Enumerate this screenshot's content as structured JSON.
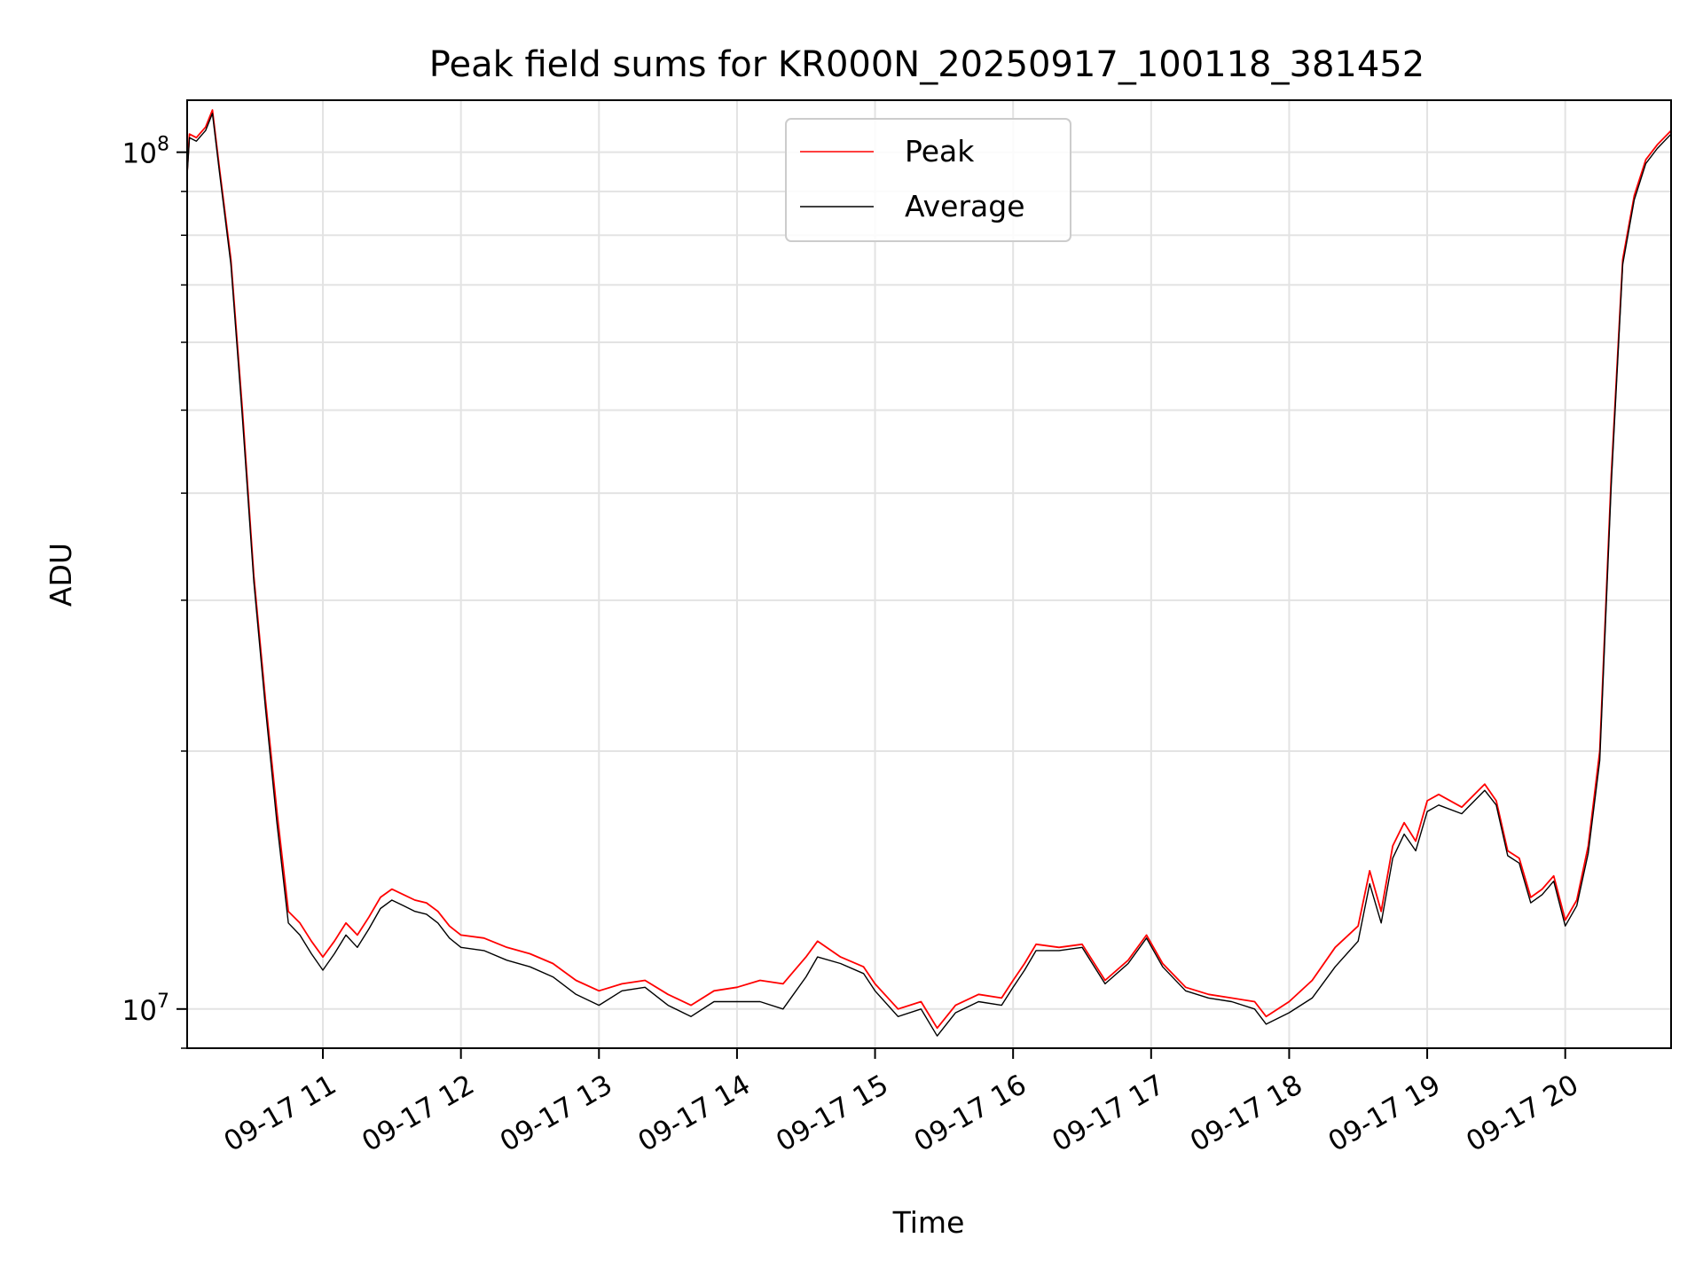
{
  "chart_data": {
    "type": "line",
    "title": "Peak field sums for KR000N_20250917_100118_381452",
    "xlabel": "Time",
    "ylabel": "ADU",
    "yscale": "log",
    "ylim": [
      9000000,
      115000000
    ],
    "xlim": [
      "2025-09-17 10:01",
      "2025-09-17 20:46"
    ],
    "grid": true,
    "legend": "top-center",
    "x_ticks": [
      {
        "label": "09-17 11",
        "time": "2025-09-17 11:00"
      },
      {
        "label": "09-17 12",
        "time": "2025-09-17 12:00"
      },
      {
        "label": "09-17 13",
        "time": "2025-09-17 13:00"
      },
      {
        "label": "09-17 14",
        "time": "2025-09-17 14:00"
      },
      {
        "label": "09-17 15",
        "time": "2025-09-17 15:00"
      },
      {
        "label": "09-17 16",
        "time": "2025-09-17 16:00"
      },
      {
        "label": "09-17 17",
        "time": "2025-09-17 17:00"
      },
      {
        "label": "09-17 18",
        "time": "2025-09-17 18:00"
      },
      {
        "label": "09-17 19",
        "time": "2025-09-17 19:00"
      },
      {
        "label": "09-17 20",
        "time": "2025-09-17 20:00"
      }
    ],
    "y_ticks": [
      {
        "base": "10",
        "exp": "7",
        "value": 10000000
      },
      {
        "base": "10",
        "exp": "8",
        "value": 100000000
      }
    ],
    "series": [
      {
        "name": "Peak",
        "color": "#ff0000",
        "points": [
          [
            "2025-09-17 10:01",
            95000000
          ],
          [
            "2025-09-17 10:02",
            105000000
          ],
          [
            "2025-09-17 10:05",
            104000000
          ],
          [
            "2025-09-17 10:09",
            107000000
          ],
          [
            "2025-09-17 10:12",
            112000000
          ],
          [
            "2025-09-17 10:15",
            96000000
          ],
          [
            "2025-09-17 10:20",
            75000000
          ],
          [
            "2025-09-17 10:25",
            50000000
          ],
          [
            "2025-09-17 10:30",
            32000000
          ],
          [
            "2025-09-17 10:35",
            23000000
          ],
          [
            "2025-09-17 10:40",
            17000000
          ],
          [
            "2025-09-17 10:45",
            13000000
          ],
          [
            "2025-09-17 10:50",
            12600000
          ],
          [
            "2025-09-17 10:55",
            12000000
          ],
          [
            "2025-09-17 11:00",
            11500000
          ],
          [
            "2025-09-17 11:05",
            12000000
          ],
          [
            "2025-09-17 11:10",
            12600000
          ],
          [
            "2025-09-17 11:15",
            12200000
          ],
          [
            "2025-09-17 11:20",
            12800000
          ],
          [
            "2025-09-17 11:25",
            13500000
          ],
          [
            "2025-09-17 11:30",
            13800000
          ],
          [
            "2025-09-17 11:35",
            13600000
          ],
          [
            "2025-09-17 11:40",
            13400000
          ],
          [
            "2025-09-17 11:45",
            13300000
          ],
          [
            "2025-09-17 11:50",
            13000000
          ],
          [
            "2025-09-17 11:55",
            12500000
          ],
          [
            "2025-09-17 12:00",
            12200000
          ],
          [
            "2025-09-17 12:10",
            12100000
          ],
          [
            "2025-09-17 12:20",
            11800000
          ],
          [
            "2025-09-17 12:30",
            11600000
          ],
          [
            "2025-09-17 12:40",
            11300000
          ],
          [
            "2025-09-17 12:50",
            10800000
          ],
          [
            "2025-09-17 13:00",
            10500000
          ],
          [
            "2025-09-17 13:10",
            10700000
          ],
          [
            "2025-09-17 13:20",
            10800000
          ],
          [
            "2025-09-17 13:30",
            10400000
          ],
          [
            "2025-09-17 13:40",
            10100000
          ],
          [
            "2025-09-17 13:50",
            10500000
          ],
          [
            "2025-09-17 14:00",
            10600000
          ],
          [
            "2025-09-17 14:10",
            10800000
          ],
          [
            "2025-09-17 14:20",
            10700000
          ],
          [
            "2025-09-17 14:30",
            11500000
          ],
          [
            "2025-09-17 14:35",
            12000000
          ],
          [
            "2025-09-17 14:45",
            11500000
          ],
          [
            "2025-09-17 14:55",
            11200000
          ],
          [
            "2025-09-17 15:00",
            10700000
          ],
          [
            "2025-09-17 15:10",
            10000000
          ],
          [
            "2025-09-17 15:20",
            10200000
          ],
          [
            "2025-09-17 15:27",
            9500000
          ],
          [
            "2025-09-17 15:35",
            10100000
          ],
          [
            "2025-09-17 15:45",
            10400000
          ],
          [
            "2025-09-17 15:55",
            10300000
          ],
          [
            "2025-09-17 16:00",
            10800000
          ],
          [
            "2025-09-17 16:05",
            11300000
          ],
          [
            "2025-09-17 16:10",
            11900000
          ],
          [
            "2025-09-17 16:20",
            11800000
          ],
          [
            "2025-09-17 16:30",
            11900000
          ],
          [
            "2025-09-17 16:40",
            10800000
          ],
          [
            "2025-09-17 16:50",
            11400000
          ],
          [
            "2025-09-17 16:58",
            12200000
          ],
          [
            "2025-09-17 17:05",
            11300000
          ],
          [
            "2025-09-17 17:15",
            10600000
          ],
          [
            "2025-09-17 17:25",
            10400000
          ],
          [
            "2025-09-17 17:35",
            10300000
          ],
          [
            "2025-09-17 17:45",
            10200000
          ],
          [
            "2025-09-17 17:50",
            9800000
          ],
          [
            "2025-09-17 18:00",
            10200000
          ],
          [
            "2025-09-17 18:10",
            10800000
          ],
          [
            "2025-09-17 18:20",
            11800000
          ],
          [
            "2025-09-17 18:30",
            12500000
          ],
          [
            "2025-09-17 18:35",
            14500000
          ],
          [
            "2025-09-17 18:40",
            13000000
          ],
          [
            "2025-09-17 18:45",
            15500000
          ],
          [
            "2025-09-17 18:50",
            16500000
          ],
          [
            "2025-09-17 18:55",
            15700000
          ],
          [
            "2025-09-17 19:00",
            17500000
          ],
          [
            "2025-09-17 19:05",
            17800000
          ],
          [
            "2025-09-17 19:15",
            17200000
          ],
          [
            "2025-09-17 19:25",
            18300000
          ],
          [
            "2025-09-17 19:30",
            17500000
          ],
          [
            "2025-09-17 19:35",
            15300000
          ],
          [
            "2025-09-17 19:40",
            15000000
          ],
          [
            "2025-09-17 19:45",
            13500000
          ],
          [
            "2025-09-17 19:50",
            13800000
          ],
          [
            "2025-09-17 19:55",
            14300000
          ],
          [
            "2025-09-17 20:00",
            12700000
          ],
          [
            "2025-09-17 20:05",
            13400000
          ],
          [
            "2025-09-17 20:10",
            15500000
          ],
          [
            "2025-09-17 20:15",
            20000000
          ],
          [
            "2025-09-17 20:20",
            42000000
          ],
          [
            "2025-09-17 20:25",
            75000000
          ],
          [
            "2025-09-17 20:30",
            89000000
          ],
          [
            "2025-09-17 20:35",
            98000000
          ],
          [
            "2025-09-17 20:40",
            102000000
          ],
          [
            "2025-09-17 20:46",
            106000000
          ]
        ]
      },
      {
        "name": "Average",
        "color": "#000000",
        "points": [
          [
            "2025-09-17 10:01",
            94000000
          ],
          [
            "2025-09-17 10:02",
            104000000
          ],
          [
            "2025-09-17 10:05",
            103000000
          ],
          [
            "2025-09-17 10:09",
            106000000
          ],
          [
            "2025-09-17 10:12",
            111000000
          ],
          [
            "2025-09-17 10:15",
            95000000
          ],
          [
            "2025-09-17 10:20",
            74000000
          ],
          [
            "2025-09-17 10:25",
            49000000
          ],
          [
            "2025-09-17 10:30",
            31500000
          ],
          [
            "2025-09-17 10:35",
            22500000
          ],
          [
            "2025-09-17 10:40",
            16500000
          ],
          [
            "2025-09-17 10:45",
            12600000
          ],
          [
            "2025-09-17 10:50",
            12200000
          ],
          [
            "2025-09-17 10:55",
            11600000
          ],
          [
            "2025-09-17 11:00",
            11100000
          ],
          [
            "2025-09-17 11:05",
            11600000
          ],
          [
            "2025-09-17 11:10",
            12200000
          ],
          [
            "2025-09-17 11:15",
            11800000
          ],
          [
            "2025-09-17 11:20",
            12400000
          ],
          [
            "2025-09-17 11:25",
            13100000
          ],
          [
            "2025-09-17 11:30",
            13400000
          ],
          [
            "2025-09-17 11:35",
            13200000
          ],
          [
            "2025-09-17 11:40",
            13000000
          ],
          [
            "2025-09-17 11:45",
            12900000
          ],
          [
            "2025-09-17 11:50",
            12600000
          ],
          [
            "2025-09-17 11:55",
            12100000
          ],
          [
            "2025-09-17 12:00",
            11800000
          ],
          [
            "2025-09-17 12:10",
            11700000
          ],
          [
            "2025-09-17 12:20",
            11400000
          ],
          [
            "2025-09-17 12:30",
            11200000
          ],
          [
            "2025-09-17 12:40",
            10900000
          ],
          [
            "2025-09-17 12:50",
            10400000
          ],
          [
            "2025-09-17 13:00",
            10100000
          ],
          [
            "2025-09-17 13:10",
            10500000
          ],
          [
            "2025-09-17 13:20",
            10600000
          ],
          [
            "2025-09-17 13:30",
            10100000
          ],
          [
            "2025-09-17 13:40",
            9800000
          ],
          [
            "2025-09-17 13:50",
            10200000
          ],
          [
            "2025-09-17 14:00",
            10200000
          ],
          [
            "2025-09-17 14:10",
            10200000
          ],
          [
            "2025-09-17 14:20",
            10000000
          ],
          [
            "2025-09-17 14:30",
            10900000
          ],
          [
            "2025-09-17 14:35",
            11500000
          ],
          [
            "2025-09-17 14:45",
            11300000
          ],
          [
            "2025-09-17 14:55",
            11000000
          ],
          [
            "2025-09-17 15:00",
            10500000
          ],
          [
            "2025-09-17 15:10",
            9800000
          ],
          [
            "2025-09-17 15:20",
            10000000
          ],
          [
            "2025-09-17 15:27",
            9300000
          ],
          [
            "2025-09-17 15:35",
            9900000
          ],
          [
            "2025-09-17 15:45",
            10200000
          ],
          [
            "2025-09-17 15:55",
            10100000
          ],
          [
            "2025-09-17 16:00",
            10600000
          ],
          [
            "2025-09-17 16:05",
            11100000
          ],
          [
            "2025-09-17 16:10",
            11700000
          ],
          [
            "2025-09-17 16:20",
            11700000
          ],
          [
            "2025-09-17 16:30",
            11800000
          ],
          [
            "2025-09-17 16:40",
            10700000
          ],
          [
            "2025-09-17 16:50",
            11300000
          ],
          [
            "2025-09-17 16:58",
            12100000
          ],
          [
            "2025-09-17 17:05",
            11200000
          ],
          [
            "2025-09-17 17:15",
            10500000
          ],
          [
            "2025-09-17 17:25",
            10300000
          ],
          [
            "2025-09-17 17:35",
            10200000
          ],
          [
            "2025-09-17 17:45",
            10000000
          ],
          [
            "2025-09-17 17:50",
            9600000
          ],
          [
            "2025-09-17 18:00",
            9900000
          ],
          [
            "2025-09-17 18:10",
            10300000
          ],
          [
            "2025-09-17 18:20",
            11200000
          ],
          [
            "2025-09-17 18:30",
            12000000
          ],
          [
            "2025-09-17 18:35",
            14000000
          ],
          [
            "2025-09-17 18:40",
            12600000
          ],
          [
            "2025-09-17 18:45",
            15000000
          ],
          [
            "2025-09-17 18:50",
            16000000
          ],
          [
            "2025-09-17 18:55",
            15300000
          ],
          [
            "2025-09-17 19:00",
            17000000
          ],
          [
            "2025-09-17 19:05",
            17300000
          ],
          [
            "2025-09-17 19:15",
            16900000
          ],
          [
            "2025-09-17 19:25",
            18000000
          ],
          [
            "2025-09-17 19:30",
            17300000
          ],
          [
            "2025-09-17 19:35",
            15100000
          ],
          [
            "2025-09-17 19:40",
            14800000
          ],
          [
            "2025-09-17 19:45",
            13300000
          ],
          [
            "2025-09-17 19:50",
            13600000
          ],
          [
            "2025-09-17 19:55",
            14100000
          ],
          [
            "2025-09-17 20:00",
            12500000
          ],
          [
            "2025-09-17 20:05",
            13200000
          ],
          [
            "2025-09-17 20:10",
            15200000
          ],
          [
            "2025-09-17 20:15",
            19500000
          ],
          [
            "2025-09-17 20:20",
            41000000
          ],
          [
            "2025-09-17 20:25",
            74000000
          ],
          [
            "2025-09-17 20:30",
            88000000
          ],
          [
            "2025-09-17 20:35",
            97000000
          ],
          [
            "2025-09-17 20:40",
            101000000
          ],
          [
            "2025-09-17 20:46",
            105000000
          ]
        ]
      }
    ]
  }
}
